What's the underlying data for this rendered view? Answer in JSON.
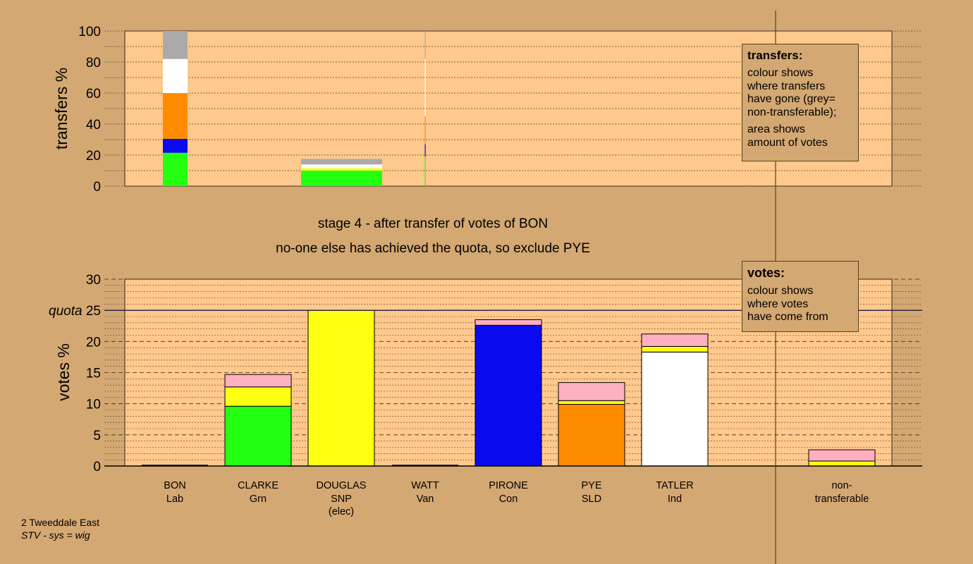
{
  "stage_text": "stage 4 - after transfer of votes of BON",
  "action_text": "no-one else has achieved the quota, so exclude PYE",
  "transfers_box": {
    "title": "transfers:",
    "lines1": [
      "colour shows",
      "where transfers",
      "have gone (grey=",
      "non-transferable);"
    ],
    "lines2": [
      "area shows",
      "amount of votes"
    ]
  },
  "votes_box": {
    "title": "votes:",
    "lines": [
      "colour shows",
      "where votes",
      "have come from"
    ]
  },
  "footer": {
    "line1": "2 Tweeddale East",
    "line2": "STV - sys = wig"
  },
  "colors": {
    "background": "#d4a872",
    "plot_bg": "#ffc88c",
    "Lab": "#ff8c00",
    "Grn": "#22ff11",
    "SNP": "#ffff11",
    "Van": "#9aa050",
    "Con": "#0a0aee",
    "SLD": "#ffb0c0",
    "Ind": "#ffffff",
    "nontransferable": "#aaaaaa"
  },
  "chart_data": [
    {
      "type": "bar",
      "name": "transfers",
      "ylabel": "transfers %",
      "ylim": [
        0,
        100
      ],
      "yticks": [
        0,
        20,
        40,
        60,
        80,
        100
      ],
      "bars": [
        {
          "category": "BON",
          "segments": [
            {
              "party": "Grn",
              "value": 21.5
            },
            {
              "party": "Con",
              "value": 9
            },
            {
              "party": "Lab",
              "value": 29.5
            },
            {
              "party": "Ind",
              "value": 22
            },
            {
              "party": "nontransferable",
              "value": 18
            }
          ]
        },
        {
          "category": "PYE",
          "segments": [
            {
              "party": "Grn",
              "value": 10
            },
            {
              "party": "SNP",
              "value": 1.5
            },
            {
              "party": "Ind",
              "value": 2.5
            },
            {
              "party": "nontransferable",
              "value": 3.5
            }
          ]
        }
      ]
    },
    {
      "type": "bar",
      "name": "votes",
      "ylabel": "votes %",
      "ylim": [
        0,
        30
      ],
      "yticks": [
        0,
        5,
        10,
        15,
        20,
        25,
        30
      ],
      "quota": 25,
      "quota_label": "quota",
      "categories": [
        {
          "name": "BON",
          "party": "Lab",
          "note": ""
        },
        {
          "name": "CLARKE",
          "party": "Grn",
          "note": ""
        },
        {
          "name": "DOUGLAS",
          "party": "SNP",
          "note": "(elec)"
        },
        {
          "name": "WATT",
          "party": "Van",
          "note": ""
        },
        {
          "name": "PIRONE",
          "party": "Con",
          "note": ""
        },
        {
          "name": "PYE",
          "party": "SLD",
          "note": ""
        },
        {
          "name": "TATLER",
          "party": "Ind",
          "note": ""
        },
        {
          "name": "non-",
          "party": "transferable",
          "note": ""
        }
      ],
      "stacks": [
        [],
        [
          {
            "party": "Grn",
            "value": 9.6
          },
          {
            "party": "SNP",
            "value": 3.1
          },
          {
            "party": "SLD",
            "value": 2.0
          }
        ],
        [
          {
            "party": "SNP",
            "value": 25.0
          }
        ],
        [],
        [
          {
            "party": "Con",
            "value": 22.6
          },
          {
            "party": "SLD",
            "value": 0.9
          }
        ],
        [
          {
            "party": "Lab",
            "value": 9.9
          },
          {
            "party": "SNP",
            "value": 0.6
          },
          {
            "party": "SLD",
            "value": 2.9
          }
        ],
        [
          {
            "party": "Ind",
            "value": 18.3
          },
          {
            "party": "SNP",
            "value": 0.9
          },
          {
            "party": "SLD",
            "value": 2.0
          }
        ],
        [
          {
            "party": "SNP",
            "value": 0.8
          },
          {
            "party": "SLD",
            "value": 1.8
          }
        ]
      ]
    }
  ]
}
